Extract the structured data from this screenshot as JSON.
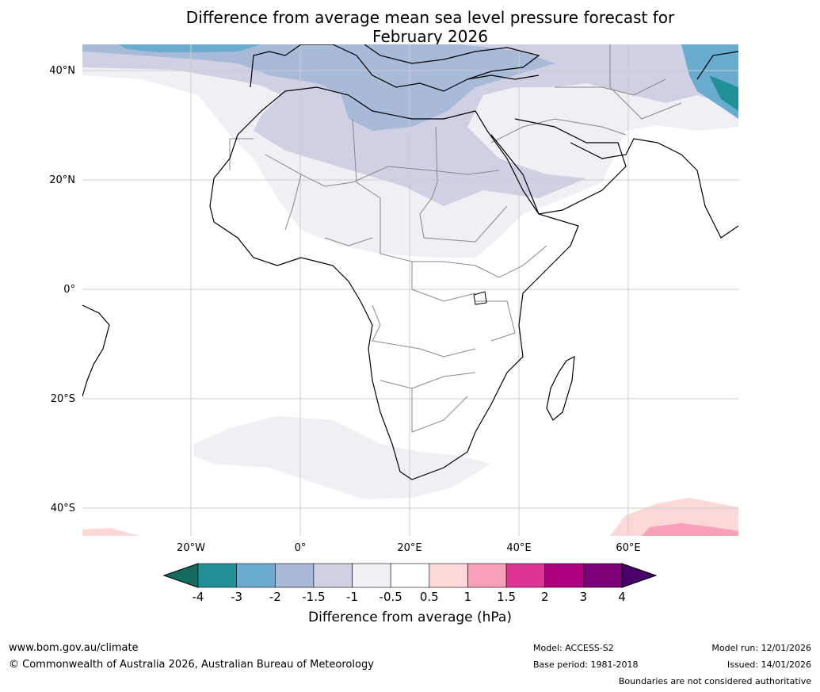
{
  "title": {
    "line1": "Difference from average mean sea level pressure forecast for",
    "line2": "February 2026"
  },
  "map": {
    "lat_labels": [
      "40°N",
      "20°N",
      "0°",
      "20°S",
      "40°S"
    ],
    "lon_labels": [
      "20°W",
      "0°",
      "20°E",
      "40°E",
      "60°E"
    ]
  },
  "colorbar": {
    "ticks": [
      "-4",
      "-3",
      "-2",
      "-1.5",
      "-1",
      "-0.5",
      "0.5",
      "1",
      "1.5",
      "2",
      "3",
      "4"
    ],
    "colors": [
      "#136b5f",
      "#1f9197",
      "#6aabd0",
      "#a7bad8",
      "#d0d0e4",
      "#f1eef4",
      "#ffffff",
      "#fdd8d9",
      "#f7a0b8",
      "#dd3497",
      "#ae017e",
      "#7a0177",
      "#49006a"
    ],
    "label": "Difference from average (hPa)"
  },
  "footer": {
    "website": "www.bom.gov.au/climate",
    "copyright": "© Commonwealth of Australia 2026, Australian Bureau of Meteorology",
    "model": "Model: ACCESS-S2",
    "base_period": "Base period: 1981-2018",
    "model_run": "Model run: 12/01/2026",
    "issued": "Issued: 14/01/2026",
    "disclaimer": "Boundaries are not considered authoritative"
  }
}
